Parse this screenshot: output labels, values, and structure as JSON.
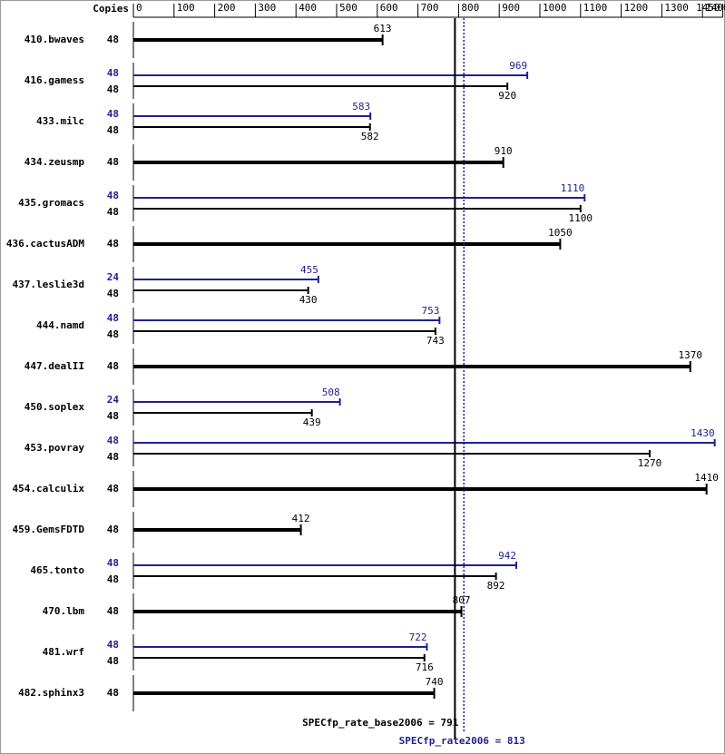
{
  "chart_data": {
    "type": "spec-bar",
    "copies_header": "Copies",
    "categories": [
      "410.bwaves",
      "416.gamess",
      "433.milc",
      "434.zeusmp",
      "435.gromacs",
      "436.cactusADM",
      "437.leslie3d",
      "444.namd",
      "447.dealII",
      "450.soplex",
      "453.povray",
      "454.calculix",
      "459.GemsFDTD",
      "465.tonto",
      "470.lbm",
      "481.wrf",
      "482.sphinx3"
    ],
    "base": {
      "color": "#000000",
      "copies": [
        48,
        48,
        48,
        48,
        48,
        48,
        48,
        48,
        48,
        48,
        48,
        48,
        48,
        48,
        48,
        48,
        48
      ],
      "values": [
        613,
        920,
        582,
        910,
        1100,
        1050,
        430,
        743,
        1370,
        439,
        1270,
        1410,
        412,
        892,
        807,
        716,
        740
      ]
    },
    "peak": {
      "color": "#1f1f8f",
      "copies": [
        null,
        48,
        48,
        null,
        48,
        null,
        24,
        48,
        null,
        24,
        48,
        null,
        null,
        48,
        null,
        48,
        null
      ],
      "values": [
        null,
        969,
        583,
        null,
        1110,
        null,
        455,
        753,
        null,
        508,
        1430,
        null,
        null,
        942,
        null,
        722,
        null
      ]
    },
    "xlim": [
      0,
      1450
    ],
    "xticks": [
      0,
      100,
      200,
      300,
      400,
      500,
      600,
      700,
      800,
      900,
      1000,
      1100,
      1200,
      1300,
      1400,
      1450
    ],
    "base_mean": {
      "value": 791,
      "label": "SPECfp_rate_base2006 = 791"
    },
    "peak_mean": {
      "value": 813,
      "label": "SPECfp_rate2006 = 813"
    }
  }
}
